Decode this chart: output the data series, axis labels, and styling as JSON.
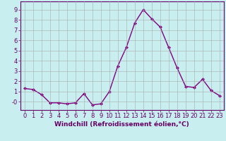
{
  "x": [
    0,
    1,
    2,
    3,
    4,
    5,
    6,
    7,
    8,
    9,
    10,
    11,
    12,
    13,
    14,
    15,
    16,
    17,
    18,
    19,
    20,
    21,
    22,
    23
  ],
  "y": [
    1.3,
    1.2,
    0.7,
    -0.1,
    -0.1,
    -0.2,
    -0.1,
    0.8,
    -0.3,
    -0.2,
    1.0,
    3.5,
    5.3,
    7.7,
    9.0,
    8.1,
    7.3,
    5.3,
    3.3,
    1.5,
    1.4,
    2.2,
    1.1,
    0.6
  ],
  "line_color": "#800080",
  "marker": "D",
  "marker_size": 2,
  "bg_color": "#c8eef0",
  "grid_color": "#aaaaaa",
  "xlabel": "Windchill (Refroidissement éolien,°C)",
  "ylim": [
    -0.8,
    9.8
  ],
  "xlim": [
    -0.5,
    23.5
  ],
  "xticks": [
    0,
    1,
    2,
    3,
    4,
    5,
    6,
    7,
    8,
    9,
    10,
    11,
    12,
    13,
    14,
    15,
    16,
    17,
    18,
    19,
    20,
    21,
    22,
    23
  ],
  "yticks": [
    0,
    1,
    2,
    3,
    4,
    5,
    6,
    7,
    8,
    9
  ],
  "xlabel_fontsize": 6.5,
  "tick_fontsize": 6,
  "line_width": 1.0
}
